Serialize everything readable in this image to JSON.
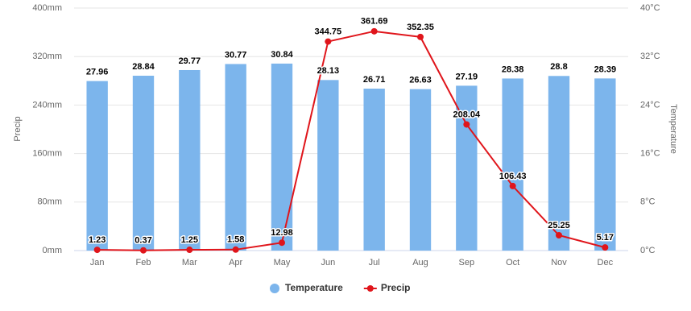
{
  "chart_data": {
    "type": "combo",
    "categories": [
      "Jan",
      "Feb",
      "Mar",
      "Apr",
      "May",
      "Jun",
      "Jul",
      "Aug",
      "Sep",
      "Oct",
      "Nov",
      "Dec"
    ],
    "series": [
      {
        "name": "Temperature",
        "type": "bar",
        "axis": "y2",
        "color": "#7cb5ec",
        "values": [
          27.96,
          28.84,
          29.77,
          30.77,
          30.84,
          28.13,
          26.71,
          26.63,
          27.19,
          28.38,
          28.8,
          28.39
        ]
      },
      {
        "name": "Precip",
        "type": "line",
        "color": "#e0151b",
        "values": [
          1.23,
          0.37,
          1.25,
          1.58,
          12.98,
          344.75,
          361.69,
          352.35,
          208.04,
          106.43,
          25.25,
          5.17
        ]
      }
    ],
    "ylabel": "Precip",
    "y2label": "Temperature",
    "ylim": [
      0,
      400
    ],
    "yticks": [
      {
        "value": 0,
        "label": "0mm"
      },
      {
        "value": 80,
        "label": "80mm"
      },
      {
        "value": 160,
        "label": "160mm"
      },
      {
        "value": 240,
        "label": "240mm"
      },
      {
        "value": 320,
        "label": "320mm"
      },
      {
        "value": 400,
        "label": "400mm"
      }
    ],
    "y2lim": [
      0,
      40
    ],
    "y2ticks": [
      {
        "value": 0,
        "label": "0°C"
      },
      {
        "value": 8,
        "label": "8°C"
      },
      {
        "value": 16,
        "label": "16°C"
      },
      {
        "value": 24,
        "label": "24°C"
      },
      {
        "value": 32,
        "label": "32°C"
      },
      {
        "value": 40,
        "label": "40°C"
      }
    ],
    "grid": true,
    "legend": "bottom"
  }
}
